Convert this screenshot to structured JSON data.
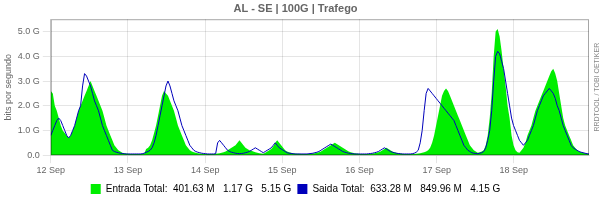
{
  "chart_data": {
    "type": "line",
    "title": "AL - SE | 100G | Trafego",
    "ylabel": "bits por segundo",
    "annotations": [
      "RRDTOOL / TOBI OETIKER"
    ],
    "grid": true,
    "legend": "bottom",
    "xlim": [
      0,
      271
    ],
    "xticks": [
      {
        "value": 0,
        "label": "12 Sep"
      },
      {
        "value": 38.857142857142854,
        "label": "13 Sep"
      },
      {
        "value": 77.71428571428571,
        "label": "14 Sep"
      },
      {
        "value": 116.57142857142857,
        "label": "15 Sep"
      },
      {
        "value": 155.42857142857142,
        "label": "16 Sep"
      },
      {
        "value": 194.28571428571428,
        "label": "17 Sep"
      },
      {
        "value": 233.14285714285714,
        "label": "18 Sep"
      }
    ],
    "ylim": [
      0,
      5.5
    ],
    "yticks": [
      {
        "value": 0.0,
        "label": "0.0"
      },
      {
        "value": 1.0,
        "label": "1.0 G"
      },
      {
        "value": 2.0,
        "label": "2.0 G"
      },
      {
        "value": 3.0,
        "label": "3.0 G"
      },
      {
        "value": 4.0,
        "label": "4.0 G"
      },
      {
        "value": 5.0,
        "label": "5.0 G"
      }
    ],
    "x": [
      0,
      1,
      2,
      3,
      4,
      5,
      6,
      7,
      8,
      9,
      10,
      11,
      12,
      13,
      14,
      15,
      16,
      17,
      18,
      19,
      20,
      21,
      22,
      23,
      24,
      25,
      26,
      27,
      28,
      29,
      30,
      31,
      32,
      33,
      34,
      35,
      36,
      37,
      38,
      39,
      40,
      41,
      42,
      43,
      44,
      45,
      46,
      47,
      48,
      49,
      50,
      51,
      52,
      53,
      54,
      55,
      56,
      57,
      58,
      59,
      60,
      61,
      62,
      63,
      64,
      65,
      66,
      67,
      68,
      69,
      70,
      71,
      72,
      73,
      74,
      75,
      76,
      77,
      78,
      79,
      80,
      81,
      82,
      83,
      84,
      85,
      86,
      87,
      88,
      89,
      90,
      91,
      92,
      93,
      94,
      95,
      96,
      97,
      98,
      99,
      100,
      101,
      102,
      103,
      104,
      105,
      106,
      107,
      108,
      109,
      110,
      111,
      112,
      113,
      114,
      115,
      116,
      117,
      118,
      119,
      120,
      121,
      122,
      123,
      124,
      125,
      126,
      127,
      128,
      129,
      130,
      131,
      132,
      133,
      134,
      135,
      136,
      137,
      138,
      139,
      140,
      141,
      142,
      143,
      144,
      145,
      146,
      147,
      148,
      149,
      150,
      151,
      152,
      153,
      154,
      155,
      156,
      157,
      158,
      159,
      160,
      161,
      162,
      163,
      164,
      165,
      166,
      167,
      168,
      169,
      170,
      171,
      172,
      173,
      174,
      175,
      176,
      177,
      178,
      179,
      180,
      181,
      182,
      183,
      184,
      185,
      186,
      187,
      188,
      189,
      190,
      191,
      192,
      193,
      194,
      195,
      196,
      197,
      198,
      199,
      200,
      201,
      202,
      203,
      204,
      205,
      206,
      207,
      208,
      209,
      210,
      211,
      212,
      213,
      214,
      215,
      216,
      217,
      218,
      219,
      220,
      221,
      222,
      223,
      224,
      225,
      226,
      227,
      228,
      229,
      230,
      231,
      232,
      233,
      234,
      235,
      236,
      237,
      238,
      239,
      240,
      241,
      242,
      243,
      244,
      245,
      246,
      247,
      248,
      249,
      250,
      251,
      252,
      253,
      254,
      255,
      256,
      257,
      258,
      259,
      260,
      261,
      262,
      263,
      264,
      265,
      266,
      267,
      268,
      269,
      270,
      271
    ],
    "series": [
      {
        "name": "Entrada Total:",
        "type": "area",
        "color": "#00ee00",
        "summary": [
          "401.63 M",
          "1.17 G",
          "5.15 G"
        ],
        "values": [
          2.6,
          2.5,
          2.0,
          1.8,
          1.5,
          1.2,
          1.0,
          0.9,
          0.8,
          0.7,
          0.8,
          1.0,
          1.2,
          1.5,
          1.8,
          2.0,
          2.2,
          2.4,
          2.6,
          2.8,
          3.0,
          2.8,
          2.6,
          2.4,
          2.2,
          2.0,
          1.8,
          1.5,
          1.2,
          1.0,
          0.8,
          0.6,
          0.4,
          0.3,
          0.2,
          0.15,
          0.1,
          0.08,
          0.07,
          0.06,
          0.05,
          0.05,
          0.05,
          0.05,
          0.05,
          0.05,
          0.05,
          0.06,
          0.25,
          0.3,
          0.4,
          0.6,
          0.9,
          1.2,
          1.6,
          2.0,
          2.4,
          2.6,
          2.5,
          2.4,
          2.2,
          2.0,
          1.8,
          1.5,
          1.2,
          1.0,
          0.8,
          0.6,
          0.4,
          0.3,
          0.2,
          0.15,
          0.12,
          0.1,
          0.08,
          0.07,
          0.06,
          0.05,
          0.05,
          0.05,
          0.05,
          0.05,
          0.05,
          0.06,
          0.07,
          0.08,
          0.1,
          0.12,
          0.15,
          0.2,
          0.25,
          0.3,
          0.35,
          0.4,
          0.5,
          0.6,
          0.5,
          0.4,
          0.3,
          0.25,
          0.2,
          0.18,
          0.15,
          0.12,
          0.1,
          0.08,
          0.07,
          0.06,
          0.1,
          0.15,
          0.2,
          0.25,
          0.35,
          0.5,
          0.6,
          0.5,
          0.4,
          0.3,
          0.2,
          0.15,
          0.12,
          0.1,
          0.08,
          0.07,
          0.06,
          0.06,
          0.05,
          0.05,
          0.05,
          0.05,
          0.05,
          0.06,
          0.07,
          0.08,
          0.1,
          0.12,
          0.15,
          0.2,
          0.25,
          0.3,
          0.35,
          0.4,
          0.45,
          0.5,
          0.45,
          0.4,
          0.35,
          0.3,
          0.25,
          0.2,
          0.15,
          0.12,
          0.1,
          0.08,
          0.07,
          0.06,
          0.05,
          0.05,
          0.05,
          0.05,
          0.05,
          0.06,
          0.07,
          0.08,
          0.1,
          0.12,
          0.15,
          0.2,
          0.25,
          0.3,
          0.25,
          0.2,
          0.15,
          0.12,
          0.1,
          0.08,
          0.07,
          0.06,
          0.05,
          0.05,
          0.05,
          0.05,
          0.05,
          0.05,
          0.06,
          0.07,
          0.08,
          0.1,
          0.12,
          0.15,
          0.2,
          0.3,
          0.5,
          0.8,
          1.2,
          1.6,
          2.0,
          2.4,
          2.6,
          2.7,
          2.6,
          2.4,
          2.2,
          2.0,
          1.8,
          1.6,
          1.4,
          1.2,
          1.0,
          0.8,
          0.6,
          0.4,
          0.3,
          0.2,
          0.15,
          0.1,
          0.12,
          0.15,
          0.2,
          0.4,
          0.8,
          1.5,
          2.5,
          4.0,
          5.0,
          5.1,
          4.8,
          4.2,
          3.5,
          2.8,
          2.0,
          1.5,
          0.8,
          0.4,
          0.2,
          0.12,
          0.1,
          0.2,
          0.3,
          0.5,
          0.8,
          1.0,
          1.2,
          1.5,
          1.8,
          2.0,
          2.2,
          2.4,
          2.6,
          2.8,
          3.0,
          3.2,
          3.4,
          3.5,
          3.3,
          3.0,
          2.5,
          2.0,
          1.5,
          1.2,
          1.0,
          0.8,
          0.6,
          0.4,
          0.3,
          0.2,
          0.15,
          0.12,
          0.1,
          0.08,
          0.06,
          0.05
        ]
      },
      {
        "name": "Saida Total:",
        "type": "line",
        "color": "#0000bb",
        "summary": [
          "633.28 M",
          "849.96 M",
          "4.15 G"
        ],
        "values": [
          0.8,
          1.0,
          1.2,
          1.4,
          1.5,
          1.4,
          1.2,
          1.0,
          0.8,
          0.7,
          0.8,
          1.0,
          1.2,
          1.5,
          1.8,
          2.0,
          2.8,
          3.3,
          3.2,
          3.0,
          2.8,
          2.5,
          2.2,
          2.0,
          1.8,
          1.5,
          1.2,
          1.0,
          0.8,
          0.6,
          0.4,
          0.2,
          0.15,
          0.12,
          0.1,
          0.08,
          0.07,
          0.06,
          0.05,
          0.05,
          0.05,
          0.05,
          0.05,
          0.05,
          0.05,
          0.05,
          0.06,
          0.08,
          0.12,
          0.15,
          0.2,
          0.3,
          0.5,
          0.8,
          1.2,
          1.6,
          2.0,
          2.4,
          2.8,
          3.0,
          2.8,
          2.5,
          2.2,
          2.0,
          1.8,
          1.5,
          1.2,
          1.0,
          0.8,
          0.6,
          0.4,
          0.3,
          0.2,
          0.15,
          0.12,
          0.1,
          0.08,
          0.07,
          0.06,
          0.05,
          0.05,
          0.05,
          0.05,
          0.06,
          0.5,
          0.6,
          0.5,
          0.4,
          0.3,
          0.2,
          0.15,
          0.12,
          0.1,
          0.08,
          0.07,
          0.06,
          0.07,
          0.08,
          0.1,
          0.12,
          0.15,
          0.2,
          0.25,
          0.3,
          0.25,
          0.2,
          0.15,
          0.1,
          0.15,
          0.2,
          0.25,
          0.3,
          0.4,
          0.5,
          0.4,
          0.3,
          0.25,
          0.2,
          0.15,
          0.1,
          0.08,
          0.07,
          0.06,
          0.05,
          0.05,
          0.05,
          0.05,
          0.05,
          0.05,
          0.05,
          0.06,
          0.07,
          0.08,
          0.1,
          0.12,
          0.15,
          0.2,
          0.25,
          0.3,
          0.35,
          0.4,
          0.45,
          0.4,
          0.35,
          0.3,
          0.25,
          0.2,
          0.15,
          0.12,
          0.1,
          0.08,
          0.07,
          0.06,
          0.05,
          0.05,
          0.05,
          0.05,
          0.05,
          0.05,
          0.05,
          0.06,
          0.07,
          0.08,
          0.1,
          0.12,
          0.15,
          0.2,
          0.25,
          0.3,
          0.25,
          0.2,
          0.15,
          0.12,
          0.1,
          0.08,
          0.07,
          0.06,
          0.05,
          0.05,
          0.05,
          0.05,
          0.05,
          0.06,
          0.08,
          0.12,
          0.2,
          0.5,
          1.0,
          1.8,
          2.5,
          2.7,
          2.6,
          2.5,
          2.4,
          2.3,
          2.2,
          2.1,
          2.0,
          1.9,
          1.8,
          1.7,
          1.6,
          1.5,
          1.4,
          1.2,
          1.0,
          0.8,
          0.6,
          0.4,
          0.3,
          0.2,
          0.15,
          0.1,
          0.08,
          0.07,
          0.06,
          0.08,
          0.1,
          0.15,
          0.3,
          0.6,
          1.0,
          1.8,
          3.0,
          4.0,
          4.2,
          4.1,
          3.8,
          3.5,
          3.0,
          2.5,
          2.0,
          1.5,
          1.2,
          1.0,
          0.8,
          0.6,
          0.5,
          0.4,
          0.5,
          0.6,
          0.8,
          1.0,
          1.2,
          1.5,
          1.8,
          2.0,
          2.2,
          2.4,
          2.5,
          2.6,
          2.7,
          2.6,
          2.5,
          2.3,
          2.0,
          1.8,
          1.5,
          1.2,
          1.0,
          0.8,
          0.6,
          0.4,
          0.3,
          0.25,
          0.2,
          0.15,
          0.12,
          0.1,
          0.08,
          0.06,
          0.05
        ]
      }
    ]
  }
}
